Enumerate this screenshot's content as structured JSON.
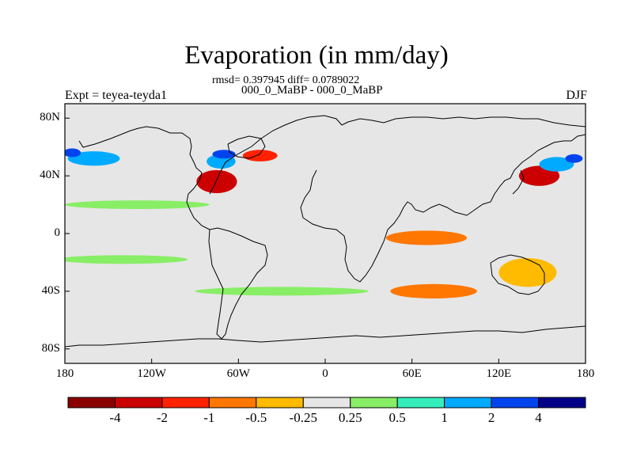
{
  "title": "Evaporation (in mm/day)",
  "stats": "rmsd= 0.397945 diff= 0.0789022",
  "subtitle": "000_0_MaBP - 000_0_MaBP",
  "left_label": "Expt = teyea-teyda1",
  "right_label": "DJF",
  "map": {
    "lon_range": [
      -180,
      180
    ],
    "lat_range": [
      -90,
      90
    ],
    "land_color": "#e6e6e6",
    "lat_ticks": [
      {
        "value": 80,
        "label": "80N"
      },
      {
        "value": 40,
        "label": "40N"
      },
      {
        "value": 0,
        "label": "0"
      },
      {
        "value": -40,
        "label": "40S"
      },
      {
        "value": -80,
        "label": "80S"
      }
    ],
    "lon_ticks": [
      {
        "value": -180,
        "label": "180"
      },
      {
        "value": -120,
        "label": "120W"
      },
      {
        "value": -60,
        "label": "60W"
      },
      {
        "value": 0,
        "label": "0"
      },
      {
        "value": 60,
        "label": "60E"
      },
      {
        "value": 120,
        "label": "120E"
      },
      {
        "value": 180,
        "label": "180"
      }
    ]
  },
  "colorbar": {
    "colors": [
      "#8b0000",
      "#cc0000",
      "#ff2200",
      "#ff7700",
      "#ffbb00",
      "#e6e6e6",
      "#88ee66",
      "#33eebb",
      "#00aaff",
      "#0044ee",
      "#000088"
    ],
    "labels": [
      "-4",
      "-2",
      "-1",
      "-0.5",
      "-0.25",
      "0.25",
      "0.5",
      "1",
      "2",
      "4"
    ]
  },
  "chart_data": {
    "type": "heatmap",
    "variable": "Evaporation (in mm/day)",
    "season": "DJF",
    "rmsd": 0.397945,
    "diff": 0.0789022,
    "levels": [
      -4,
      -2,
      -1,
      -0.5,
      -0.25,
      0.25,
      0.5,
      1,
      2,
      4
    ],
    "features": [
      {
        "lon": -75,
        "lat": 36,
        "rx": 14,
        "ry": 8,
        "value": -2.5
      },
      {
        "lon": -45,
        "lat": 54,
        "rx": 12,
        "ry": 4,
        "value": -1.2
      },
      {
        "lon": -72,
        "lat": 50,
        "rx": 10,
        "ry": 5,
        "value": 1.5
      },
      {
        "lon": -70,
        "lat": 55,
        "rx": 8,
        "ry": 3,
        "value": 3.0
      },
      {
        "lon": 148,
        "lat": 40,
        "rx": 14,
        "ry": 7,
        "value": -2.5
      },
      {
        "lon": 160,
        "lat": 48,
        "rx": 12,
        "ry": 5,
        "value": 1.5
      },
      {
        "lon": 172,
        "lat": 52,
        "rx": 6,
        "ry": 3,
        "value": 3.0
      },
      {
        "lon": -160,
        "lat": 52,
        "rx": 18,
        "ry": 5,
        "value": 1.2
      },
      {
        "lon": -175,
        "lat": 56,
        "rx": 6,
        "ry": 3,
        "value": 3.0
      },
      {
        "lon": 75,
        "lat": -40,
        "rx": 30,
        "ry": 5,
        "value": -0.6
      },
      {
        "lon": 70,
        "lat": -3,
        "rx": 28,
        "ry": 5,
        "value": -0.6
      },
      {
        "lon": 140,
        "lat": -27,
        "rx": 20,
        "ry": 10,
        "value": -0.4
      },
      {
        "lon": -140,
        "lat": -18,
        "rx": 45,
        "ry": 3,
        "value": 0.35
      },
      {
        "lon": -30,
        "lat": -40,
        "rx": 60,
        "ry": 3,
        "value": 0.35
      },
      {
        "lon": -130,
        "lat": 20,
        "rx": 50,
        "ry": 3,
        "value": 0.35
      }
    ]
  }
}
